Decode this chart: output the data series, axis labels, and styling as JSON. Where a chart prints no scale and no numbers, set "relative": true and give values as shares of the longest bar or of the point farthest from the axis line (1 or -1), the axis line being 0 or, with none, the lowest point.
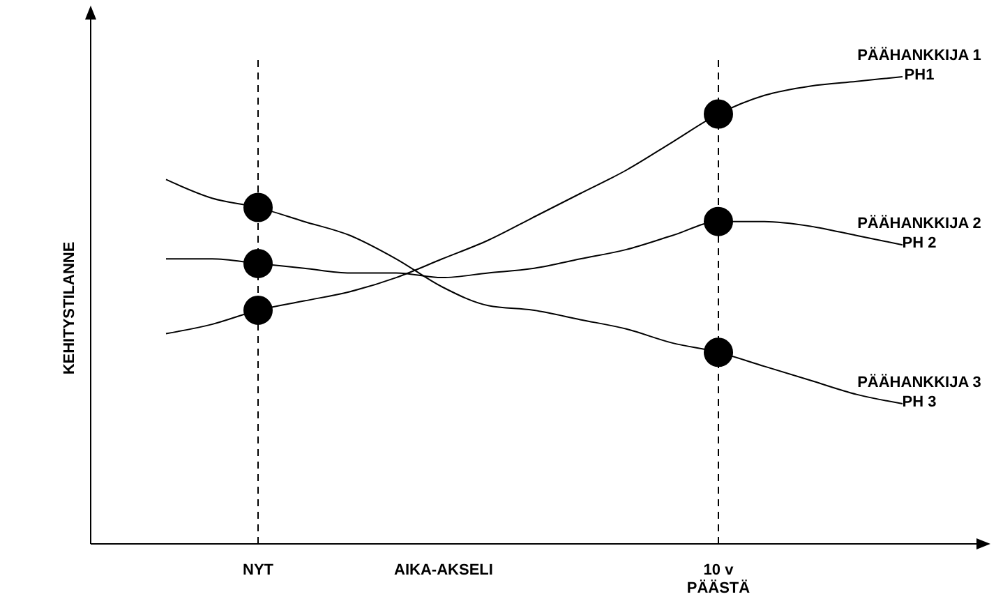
{
  "chart_data": {
    "type": "line",
    "xlabel": "AIKA-AKSELI",
    "ylabel": "KEHITYSTILANNE",
    "relative": true,
    "categories": [
      null,
      null,
      "NYT",
      null,
      null,
      null,
      null,
      null,
      null,
      null,
      null,
      null,
      "10 v\nPÄÄSTÄ",
      null,
      null,
      null,
      null
    ],
    "series": [
      {
        "name": "PÄÄHANKKIJA 1\nPH1",
        "color": "#000000",
        "values": [
          0.45,
          0.47,
          0.5,
          0.52,
          0.54,
          0.57,
          0.61,
          0.65,
          0.7,
          0.75,
          0.8,
          0.86,
          0.92,
          0.96,
          0.98,
          0.99,
          1
        ]
      },
      {
        "name": "PÄÄHANKKIJA 2\nPH 2",
        "color": "#000000",
        "values": [
          0.61,
          0.61,
          0.6,
          0.59,
          0.58,
          0.58,
          0.57,
          0.58,
          0.59,
          0.61,
          0.63,
          0.66,
          0.69,
          0.69,
          0.68,
          0.66,
          0.64
        ]
      },
      {
        "name": "PÄÄHANKKIJA 3\nPH 3",
        "color": "#000000",
        "values": [
          0.78,
          0.74,
          0.72,
          0.69,
          0.66,
          0.61,
          0.55,
          0.51,
          0.5,
          0.48,
          0.46,
          0.43,
          0.41,
          0.38,
          0.35,
          0.32,
          0.3
        ]
      },
      {
        "type": "scatter",
        "color": "#000000",
        "marker": "circle",
        "x": [
          "NYT",
          "NYT",
          "NYT",
          "10 v\nPÄÄSTÄ",
          "10 v\nPÄÄSTÄ",
          "10 v\nPÄÄSTÄ"
        ],
        "values": [
          0.5,
          0.6,
          0.72,
          0.92,
          0.69,
          0.41
        ]
      }
    ],
    "ref_lines": [
      {
        "axis": "x",
        "value": "NYT",
        "line_style": "dashed"
      },
      {
        "axis": "x",
        "value": "10 v\nPÄÄSTÄ",
        "line_style": "dashed"
      }
    ]
  }
}
